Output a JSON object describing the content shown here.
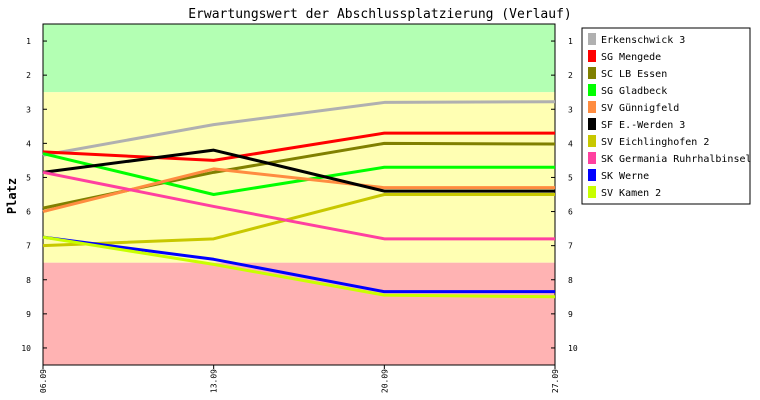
{
  "chart_data": {
    "type": "line",
    "title": "Erwartungswert der Abschlussplatzierung (Verlauf)",
    "xlabel": "",
    "ylabel": "Platz",
    "categories": [
      "06.09",
      "13.09",
      "20.09",
      "27.09"
    ],
    "y_ticks": [
      "1",
      "2",
      "3",
      "4",
      "5",
      "6",
      "7",
      "8",
      "9",
      "10"
    ],
    "ylim": [
      0.5,
      10.5
    ],
    "y_inverted": true,
    "grid": false,
    "legend_position": "right",
    "bands": [
      {
        "from": 0.5,
        "to": 2.5,
        "color": "#b3ffb3"
      },
      {
        "from": 2.5,
        "to": 7.5,
        "color": "#ffffb3"
      },
      {
        "from": 7.5,
        "to": 10.5,
        "color": "#ffb3b3"
      }
    ],
    "series": [
      {
        "name": "Erkenschwick 3",
        "color": "#b0b0b0",
        "values": [
          4.35,
          3.45,
          2.8,
          2.78
        ]
      },
      {
        "name": "SG Mengede",
        "color": "#ff0000",
        "values": [
          4.25,
          4.5,
          3.7,
          3.7
        ]
      },
      {
        "name": "SC LB Essen",
        "color": "#808000",
        "values": [
          5.9,
          4.85,
          4.0,
          4.02
        ]
      },
      {
        "name": "SG Gladbeck",
        "color": "#00ff00",
        "values": [
          4.3,
          5.5,
          4.7,
          4.7
        ]
      },
      {
        "name": "SV Günnigfeld",
        "color": "#ff8c40",
        "values": [
          6.0,
          4.75,
          5.3,
          5.3
        ]
      },
      {
        "name": "SF E.-Werden 3",
        "color": "#000000",
        "values": [
          4.85,
          4.2,
          5.4,
          5.4
        ]
      },
      {
        "name": "SV Eichlinghofen 2",
        "color": "#c8c800",
        "values": [
          7.0,
          6.8,
          5.5,
          5.5
        ]
      },
      {
        "name": "SK Germania Ruhrhalbinsel",
        "color": "#ff40a0",
        "values": [
          4.85,
          5.85,
          6.8,
          6.8
        ]
      },
      {
        "name": "SK Werne",
        "color": "#0000ff",
        "values": [
          6.75,
          7.4,
          8.35,
          8.35
        ]
      },
      {
        "name": "SV Kamen 2",
        "color": "#c8ff00",
        "values": [
          6.75,
          7.55,
          8.45,
          8.5
        ]
      }
    ]
  }
}
